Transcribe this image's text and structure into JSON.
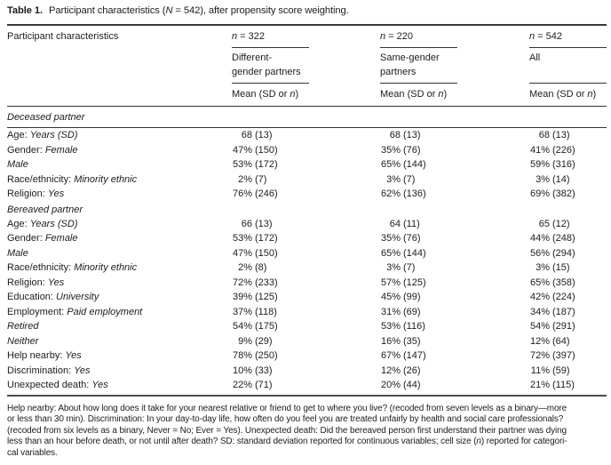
{
  "caption": {
    "segments": [
      {
        "t": "Table 1.",
        "s": "b"
      },
      {
        "t": " Participant characteristics ("
      },
      {
        "t": "N",
        "s": "i"
      },
      {
        "t": " = 542), after propensity score weighting."
      }
    ]
  },
  "header": {
    "label": "Participant characteristics",
    "stat_columns": [
      {
        "n": [
          {
            "t": "n",
            "s": "i"
          },
          {
            "t": " = 322"
          }
        ],
        "group_lines": [
          "Different-",
          "gender partners"
        ],
        "mean": [
          {
            "t": "Mean (SD or "
          },
          {
            "t": "n",
            "s": "i"
          },
          {
            "t": ")"
          }
        ]
      },
      {
        "n": [
          {
            "t": "n",
            "s": "i"
          },
          {
            "t": " = 220"
          }
        ],
        "group_lines": [
          "Same-gender",
          "partners"
        ],
        "mean": [
          {
            "t": "Mean (SD or "
          },
          {
            "t": "n",
            "s": "i"
          },
          {
            "t": ")"
          }
        ]
      },
      {
        "n": [
          {
            "t": "n",
            "s": "i"
          },
          {
            "t": " = 542"
          }
        ],
        "group_lines": [
          "All"
        ],
        "mean": [
          {
            "t": "Mean (SD or "
          },
          {
            "t": "n",
            "s": "i"
          },
          {
            "t": ")"
          }
        ]
      }
    ]
  },
  "body": {
    "sections": [
      {
        "label": "Deceased partner",
        "rule_below": true,
        "rows": [
          {
            "label": [
              {
                "t": "Age: "
              },
              {
                "t": "Years (SD)",
                "s": "i"
              }
            ],
            "values": [
              {
                "num": "68",
                "paren": "(13)"
              },
              {
                "num": "68",
                "paren": "(13)"
              },
              {
                "num": "68",
                "paren": "(13)"
              }
            ]
          },
          {
            "label": [
              {
                "t": "Gender: "
              },
              {
                "t": "Female",
                "s": "i"
              }
            ],
            "values": [
              {
                "num": "47%",
                "paren": "(150)"
              },
              {
                "num": "35%",
                "paren": "(76)"
              },
              {
                "num": "41%",
                "paren": "(226)"
              }
            ]
          },
          {
            "label": [
              {
                "t": "Male",
                "s": "i"
              }
            ],
            "values": [
              {
                "num": "53%",
                "paren": "(172)"
              },
              {
                "num": "65%",
                "paren": "(144)"
              },
              {
                "num": "59%",
                "paren": "(316)"
              }
            ]
          },
          {
            "label": [
              {
                "t": "Race/ethnicity: "
              },
              {
                "t": "Minority ethnic",
                "s": "i"
              }
            ],
            "values": [
              {
                "num": "2%",
                "paren": "(7)"
              },
              {
                "num": "3%",
                "paren": "(7)"
              },
              {
                "num": "3%",
                "paren": "(14)"
              }
            ]
          },
          {
            "label": [
              {
                "t": "Religion: "
              },
              {
                "t": "Yes",
                "s": "i"
              }
            ],
            "values": [
              {
                "num": "76%",
                "paren": "(246)"
              },
              {
                "num": "62%",
                "paren": "(136)"
              },
              {
                "num": "69%",
                "paren": "(382)"
              }
            ]
          }
        ]
      },
      {
        "label": "Bereaved partner",
        "rule_below": false,
        "rows": [
          {
            "label": [
              {
                "t": "Age: "
              },
              {
                "t": "Years (SD)",
                "s": "i"
              }
            ],
            "values": [
              {
                "num": "66",
                "paren": "(13)"
              },
              {
                "num": "64",
                "paren": "(11)"
              },
              {
                "num": "65",
                "paren": "(12)"
              }
            ]
          },
          {
            "label": [
              {
                "t": "Gender: "
              },
              {
                "t": "Female",
                "s": "i"
              }
            ],
            "values": [
              {
                "num": "53%",
                "paren": "(172)"
              },
              {
                "num": "35%",
                "paren": "(76)"
              },
              {
                "num": "44%",
                "paren": "(248)"
              }
            ]
          },
          {
            "label": [
              {
                "t": "Male",
                "s": "i"
              }
            ],
            "values": [
              {
                "num": "47%",
                "paren": "(150)"
              },
              {
                "num": "65%",
                "paren": "(144)"
              },
              {
                "num": "56%",
                "paren": "(294)"
              }
            ]
          },
          {
            "label": [
              {
                "t": "Race/ethnicity: "
              },
              {
                "t": "Minority ethnic",
                "s": "i"
              }
            ],
            "values": [
              {
                "num": "2%",
                "paren": "(8)"
              },
              {
                "num": "3%",
                "paren": "(7)"
              },
              {
                "num": "3%",
                "paren": "(15)"
              }
            ]
          },
          {
            "label": [
              {
                "t": "Religion: "
              },
              {
                "t": "Yes",
                "s": "i"
              }
            ],
            "values": [
              {
                "num": "72%",
                "paren": "(233)"
              },
              {
                "num": "57%",
                "paren": "(125)"
              },
              {
                "num": "65%",
                "paren": "(358)"
              }
            ]
          },
          {
            "label": [
              {
                "t": "Education: "
              },
              {
                "t": "University",
                "s": "i"
              }
            ],
            "values": [
              {
                "num": "39%",
                "paren": "(125)"
              },
              {
                "num": "45%",
                "paren": "(99)"
              },
              {
                "num": "42%",
                "paren": "(224)"
              }
            ]
          },
          {
            "label": [
              {
                "t": "Employment: "
              },
              {
                "t": "Paid employment",
                "s": "i"
              }
            ],
            "values": [
              {
                "num": "37%",
                "paren": "(118)"
              },
              {
                "num": "31%",
                "paren": "(69)"
              },
              {
                "num": "34%",
                "paren": "(187)"
              }
            ]
          },
          {
            "label": [
              {
                "t": "Retired",
                "s": "i"
              }
            ],
            "values": [
              {
                "num": "54%",
                "paren": "(175)"
              },
              {
                "num": "53%",
                "paren": "(116)"
              },
              {
                "num": "54%",
                "paren": "(291)"
              }
            ]
          },
          {
            "label": [
              {
                "t": "Neither",
                "s": "i"
              }
            ],
            "values": [
              {
                "num": "9%",
                "paren": "(29)"
              },
              {
                "num": "16%",
                "paren": "(35)"
              },
              {
                "num": "12%",
                "paren": "(64)"
              }
            ]
          },
          {
            "label": [
              {
                "t": "Help nearby: "
              },
              {
                "t": "Yes",
                "s": "i"
              }
            ],
            "values": [
              {
                "num": "78%",
                "paren": "(250)"
              },
              {
                "num": "67%",
                "paren": "(147)"
              },
              {
                "num": "72%",
                "paren": "(397)"
              }
            ]
          },
          {
            "label": [
              {
                "t": "Discrimination: "
              },
              {
                "t": "Yes",
                "s": "i"
              }
            ],
            "values": [
              {
                "num": "10%",
                "paren": "(33)"
              },
              {
                "num": "12%",
                "paren": "(26)"
              },
              {
                "num": "11%",
                "paren": "(59)"
              }
            ]
          },
          {
            "label": [
              {
                "t": "Unexpected death: "
              },
              {
                "t": "Yes",
                "s": "i"
              }
            ],
            "values": [
              {
                "num": "22%",
                "paren": "(71)"
              },
              {
                "num": "20%",
                "paren": "(44)"
              },
              {
                "num": "21%",
                "paren": "(115)"
              }
            ]
          }
        ]
      }
    ]
  },
  "footnote": {
    "lines": [
      [
        {
          "t": "Help nearby: About how long does it take for your nearest relative or friend to get to where you live? (recoded from seven levels as a binary—more"
        }
      ],
      [
        {
          "t": "or less than 30 min). Discrimination: In your day-to-day life, how often do you feel you are treated unfairly by health and social care professionals?"
        }
      ],
      [
        {
          "t": "(recoded from six levels as a binary, Never = No; Ever = Yes). Unexpected death: Did the bereaved person first understand their partner was dying"
        }
      ],
      [
        {
          "t": "less than an hour before death, or not until after death? SD: standard deviation reported for continuous variables; cell size ("
        },
        {
          "t": "n",
          "s": "i"
        },
        {
          "t": ") reported for categori-"
        }
      ],
      [
        {
          "t": "cal variables."
        }
      ]
    ]
  }
}
